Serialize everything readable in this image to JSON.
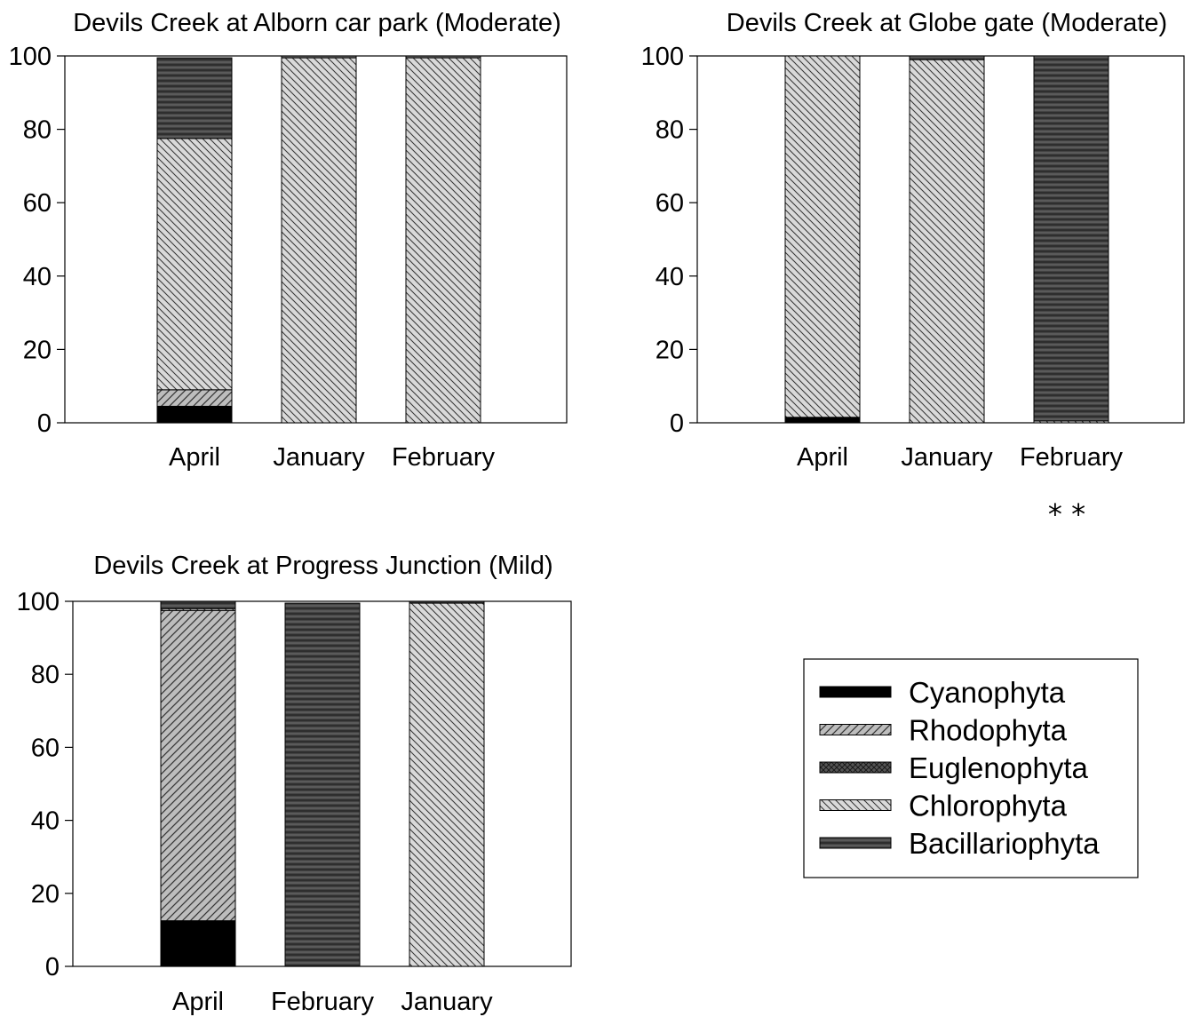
{
  "legend": {
    "items": [
      {
        "name": "Cyanophyta",
        "pattern": "solid-black"
      },
      {
        "name": "Rhodophyta",
        "pattern": "forward-diagonal-gray"
      },
      {
        "name": "Euglenophyta",
        "pattern": "crosshatch-dark"
      },
      {
        "name": "Chlorophyta",
        "pattern": "back-diagonal-light"
      },
      {
        "name": "Bacillariophyta",
        "pattern": "horizontal-dark"
      }
    ]
  },
  "colors": {
    "Cyanophyta": "#000000",
    "Rhodophyta": "#bdbdbd",
    "Euglenophyta": "#555555",
    "Chlorophyta": "#d9d9d9",
    "Bacillariophyta": "#444444"
  },
  "annotation": "* *",
  "chart_data": [
    {
      "type": "bar",
      "stacked": true,
      "title": "Devils Creek at Alborn car park (Moderate)",
      "categories": [
        "April",
        "January",
        "February"
      ],
      "ylim": [
        0,
        100
      ],
      "yticks": [
        0,
        20,
        40,
        60,
        80,
        100
      ],
      "series": [
        {
          "name": "Cyanophyta",
          "values": [
            4.5,
            0,
            0
          ]
        },
        {
          "name": "Rhodophyta",
          "values": [
            4.5,
            0,
            0
          ]
        },
        {
          "name": "Euglenophyta",
          "values": [
            0,
            0,
            0
          ]
        },
        {
          "name": "Chlorophyta",
          "values": [
            68.5,
            99.5,
            99.5
          ]
        },
        {
          "name": "Bacillariophyta",
          "values": [
            22,
            0.5,
            0.5
          ]
        }
      ]
    },
    {
      "type": "bar",
      "stacked": true,
      "title": "Devils Creek at Globe gate (Moderate)",
      "categories": [
        "April",
        "January",
        "February"
      ],
      "ylim": [
        0,
        100
      ],
      "yticks": [
        0,
        20,
        40,
        60,
        80,
        100
      ],
      "series": [
        {
          "name": "Cyanophyta",
          "values": [
            1.5,
            0,
            0
          ]
        },
        {
          "name": "Rhodophyta",
          "values": [
            0,
            0,
            0
          ]
        },
        {
          "name": "Euglenophyta",
          "values": [
            0,
            0,
            0
          ]
        },
        {
          "name": "Chlorophyta",
          "values": [
            98.5,
            99,
            0.5
          ]
        },
        {
          "name": "Bacillariophyta",
          "values": [
            0,
            1,
            99.5
          ]
        }
      ]
    },
    {
      "type": "bar",
      "stacked": true,
      "title": "Devils Creek at Progress Junction (Mild)",
      "categories": [
        "April",
        "February",
        "January"
      ],
      "ylim": [
        0,
        100
      ],
      "yticks": [
        0,
        20,
        40,
        60,
        80,
        100
      ],
      "series": [
        {
          "name": "Cyanophyta",
          "values": [
            12.5,
            0,
            0
          ]
        },
        {
          "name": "Rhodophyta",
          "values": [
            85,
            0,
            0
          ]
        },
        {
          "name": "Euglenophyta",
          "values": [
            0,
            0,
            0
          ]
        },
        {
          "name": "Chlorophyta",
          "values": [
            0.5,
            0,
            99.5
          ]
        },
        {
          "name": "Bacillariophyta",
          "values": [
            2,
            99.5,
            0.5
          ]
        }
      ]
    }
  ]
}
